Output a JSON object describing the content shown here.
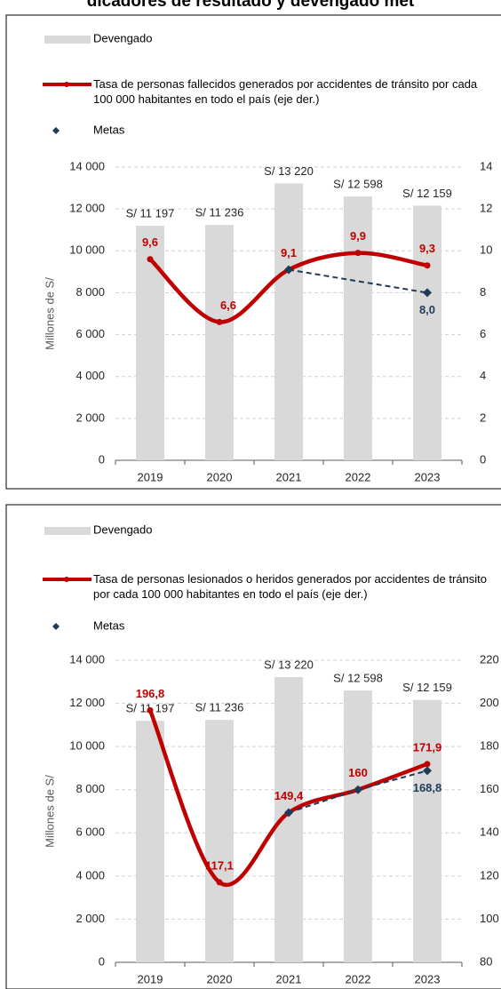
{
  "title": "dicadores de resultado y devengado met",
  "chart_data": [
    {
      "type": "bar_line",
      "y_label": "Millones de S/",
      "categories": [
        "2019",
        "2020",
        "2021",
        "2022",
        "2023"
      ],
      "ylim": [
        0,
        14000
      ],
      "yticks": [
        0,
        {
          "value": 2000,
          "label": "2 000"
        },
        {
          "value": 4000,
          "label": "4 000"
        },
        {
          "value": 6000,
          "label": "6 000"
        },
        {
          "value": 8000,
          "label": "8 000"
        },
        {
          "value": 10000,
          "label": "10 000"
        },
        {
          "value": 12000,
          "label": "12 000"
        },
        {
          "value": 14000,
          "label": "14 000"
        }
      ],
      "y2lim": [
        0,
        14
      ],
      "y2ticks": [
        0,
        2,
        4,
        6,
        8,
        10,
        12,
        14
      ],
      "grid": true,
      "series": [
        {
          "name": "Devengado",
          "color": "#d9d9d9",
          "values": [
            11197,
            11236,
            13220,
            12598,
            12159
          ],
          "value_labels": [
            "S/ 11 197",
            "S/ 11 236",
            "S/ 13 220",
            "S/ 12 598",
            "S/ 12 159"
          ]
        },
        {
          "name": "Tasa de personas fallecidos generados por accidentes de tránsito por cada 100 000 habitantes en todo el país (eje der.)",
          "color": "#c00000",
          "axis": "y2",
          "values": [
            9.6,
            6.6,
            9.1,
            9.9,
            9.3
          ],
          "value_labels": [
            "9,6",
            "6,6",
            "9,1",
            "9,9",
            "9,3"
          ]
        },
        {
          "name": "Metas",
          "color": "#1f3b57",
          "axis": "y2",
          "values": [
            null,
            null,
            9.1,
            null,
            8.0
          ],
          "value_labels": [
            null,
            null,
            null,
            null,
            "8,0"
          ]
        }
      ]
    },
    {
      "type": "bar_line",
      "y_label": "Millones de S/",
      "categories": [
        "2019",
        "2020",
        "2021",
        "2022",
        "2023"
      ],
      "ylim": [
        0,
        14000
      ],
      "yticks": [
        0,
        {
          "value": 2000,
          "label": "2 000"
        },
        {
          "value": 4000,
          "label": "4 000"
        },
        {
          "value": 6000,
          "label": "6 000"
        },
        {
          "value": 8000,
          "label": "8 000"
        },
        {
          "value": 10000,
          "label": "10 000"
        },
        {
          "value": 12000,
          "label": "12 000"
        },
        {
          "value": 14000,
          "label": "14 000"
        }
      ],
      "y2lim": [
        80,
        220
      ],
      "y2ticks": [
        80,
        100,
        120,
        140,
        160,
        180,
        200,
        220
      ],
      "grid": true,
      "series": [
        {
          "name": "Devengado",
          "color": "#d9d9d9",
          "values": [
            11197,
            11236,
            13220,
            12598,
            12159
          ],
          "value_labels": [
            "S/ 11 197",
            "S/ 11 236",
            "S/ 13 220",
            "S/ 12 598",
            "S/ 12 159"
          ]
        },
        {
          "name": "Tasa de personas lesionados o heridos generados por accidentes de tránsito por cada 100 000 habitantes en todo el país (eje der.)",
          "color": "#c00000",
          "axis": "y2",
          "values": [
            196.8,
            117.1,
            149.4,
            160,
            171.9
          ],
          "value_labels": [
            "196,8",
            "117,1",
            "149,4",
            "160",
            "171,9"
          ]
        },
        {
          "name": "Metas",
          "color": "#1f3b57",
          "axis": "y2",
          "values": [
            null,
            null,
            149.4,
            160,
            168.8
          ],
          "value_labels": [
            null,
            null,
            null,
            null,
            "168,8"
          ]
        }
      ]
    }
  ]
}
